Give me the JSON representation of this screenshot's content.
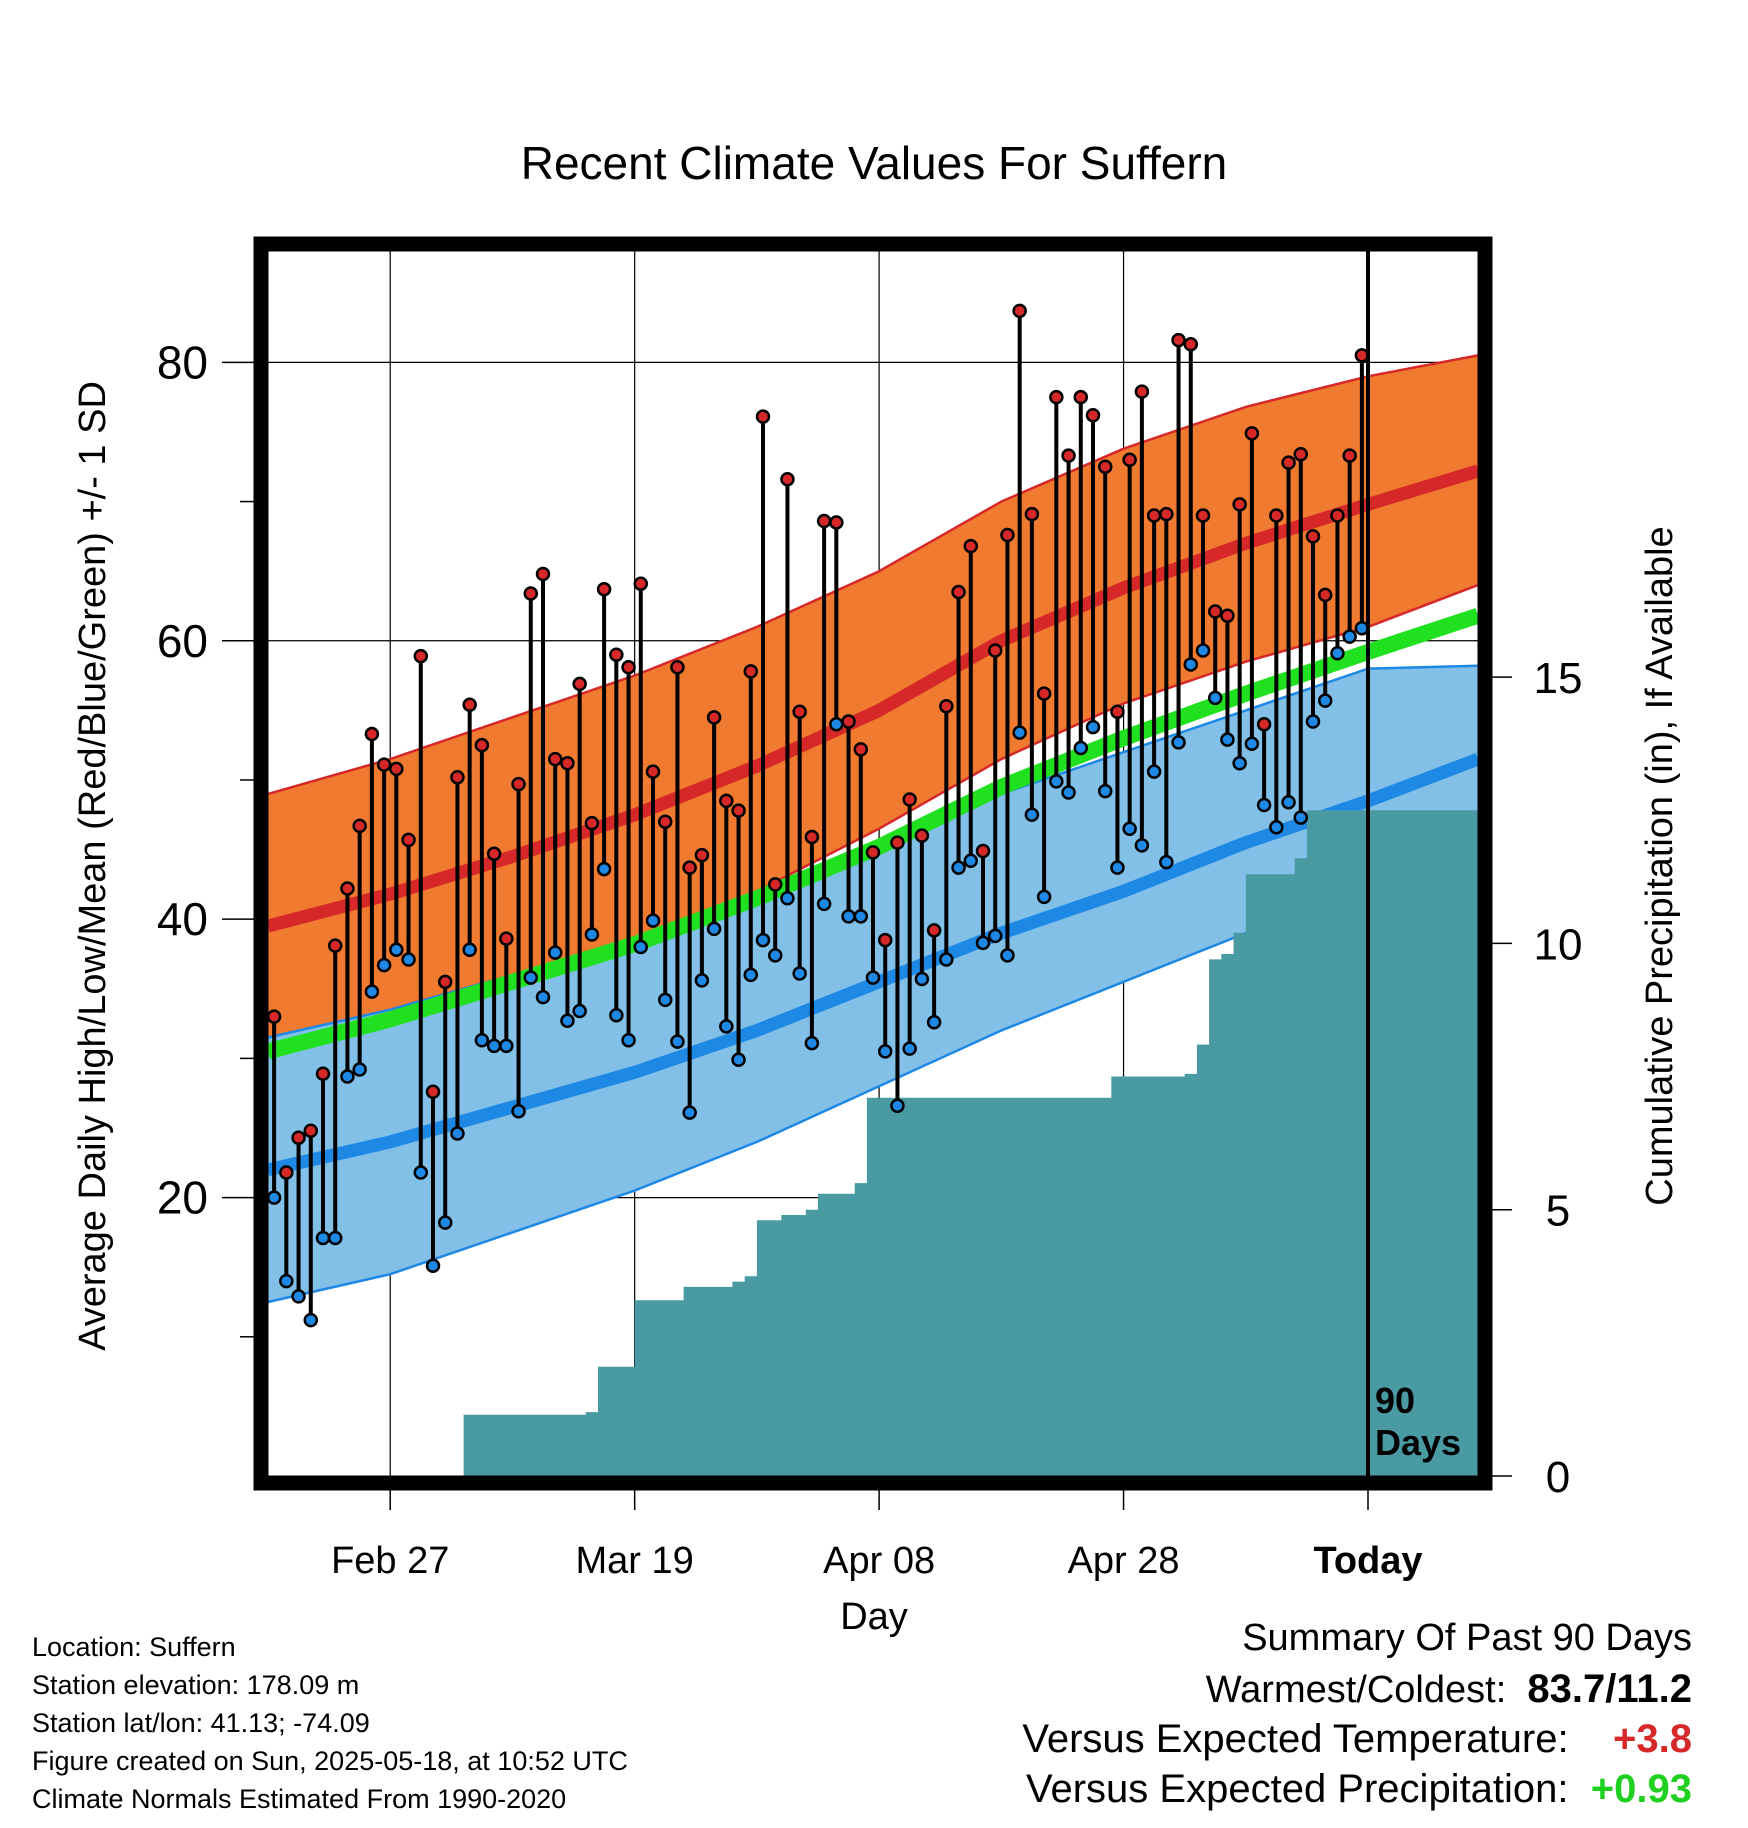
{
  "chart_data": {
    "type": "line",
    "title": "Recent Climate Values For Suffern",
    "xlabel": "Day",
    "ylabel": "Average Daily High/Low/Mean (Red/Blue/Green) +/- 1 SD",
    "y2label": "Cumulative Precipitation (in), If Available",
    "ylim": [
      0,
      88
    ],
    "y_ticks": [
      20,
      40,
      60,
      80
    ],
    "y2lim": [
      0,
      23
    ],
    "y2_ticks": [
      0,
      5,
      10,
      15
    ],
    "x_range": [
      "2025-02-17",
      "2025-05-27"
    ],
    "x_tick_labels": [
      {
        "date": "2025-02-27",
        "label": "Feb 27"
      },
      {
        "date": "2025-03-19",
        "label": "Mar 19"
      },
      {
        "date": "2025-04-08",
        "label": "Apr 08"
      },
      {
        "date": "2025-04-28",
        "label": "Apr 28"
      },
      {
        "date": "2025-05-18",
        "label": "Today"
      }
    ],
    "today": "2025-05-18",
    "today_label": "90\nDays",
    "grid": true,
    "colors": {
      "high": "#d62828",
      "high_band": "#f07a30",
      "low": "#1e88e5",
      "low_band": "#82c0e8",
      "mean": "#20e020",
      "precip": "#4a9aa3"
    },
    "normals": {
      "dates": [
        "2025-02-17",
        "2025-02-27",
        "2025-03-09",
        "2025-03-19",
        "2025-03-29",
        "2025-04-08",
        "2025-04-18",
        "2025-04-28",
        "2025-05-08",
        "2025-05-18",
        "2025-05-27"
      ],
      "high_mean": [
        39.5,
        41.8,
        44.5,
        47.5,
        51.0,
        55.0,
        60.0,
        63.8,
        67.0,
        69.8,
        72.2
      ],
      "high_upper": [
        49.0,
        51.5,
        54.5,
        57.5,
        61.0,
        65.0,
        70.0,
        73.8,
        76.8,
        79.0,
        80.5
      ],
      "high_lower": [
        31.0,
        33.5,
        36.0,
        38.5,
        42.0,
        46.5,
        51.5,
        55.5,
        58.5,
        61.0,
        64.0
      ],
      "low_mean": [
        22.0,
        24.0,
        26.5,
        29.0,
        32.0,
        35.5,
        39.0,
        42.0,
        45.5,
        48.5,
        51.5
      ],
      "low_upper": [
        31.5,
        33.5,
        36.0,
        38.5,
        42.0,
        45.5,
        49.0,
        52.0,
        55.0,
        58.0,
        58.2
      ],
      "low_lower": [
        12.5,
        14.5,
        17.5,
        20.5,
        24.0,
        28.0,
        32.0,
        35.5,
        39.0,
        42.0,
        45.0
      ],
      "mean": [
        30.5,
        32.8,
        35.5,
        38.2,
        41.5,
        45.2,
        49.5,
        53.0,
        56.2,
        59.2,
        61.8
      ]
    },
    "observed": {
      "start": "2025-02-17",
      "high": [
        33,
        21.8,
        24.3,
        24.8,
        28.9,
        38.1,
        42.2,
        46.7,
        53.3,
        51.1,
        50.8,
        45.7,
        58.9,
        27.6,
        35.5,
        50.2,
        55.4,
        52.5,
        44.7,
        38.6,
        49.7,
        63.4,
        64.8,
        51.5,
        51.2,
        56.9,
        46.9,
        63.7,
        59,
        58.1,
        64.1,
        50.6,
        47,
        58.1,
        43.7,
        44.6,
        54.5,
        48.5,
        47.8,
        57.8,
        76.1,
        42.5,
        71.6,
        54.9,
        45.9,
        68.6,
        68.5,
        54.2,
        52.2,
        44.8,
        38.5,
        45.5,
        48.6,
        46,
        39.2,
        55.3,
        63.5,
        66.8,
        44.9,
        59.3,
        67.6,
        83.7,
        69.1,
        56.2,
        77.5,
        73.3,
        77.5,
        76.2,
        72.5,
        54.9,
        73,
        77.9,
        69,
        69.1,
        81.6,
        81.3,
        69,
        62.1,
        61.8,
        69.8,
        74.9,
        54,
        69,
        72.8,
        73.4,
        67.5,
        63.3,
        69,
        73.3,
        80.5
      ],
      "low": [
        20,
        14,
        12.9,
        11.2,
        17.1,
        17.1,
        28.7,
        29.2,
        34.8,
        36.7,
        37.8,
        37.1,
        21.8,
        15.1,
        18.2,
        24.6,
        37.8,
        31.3,
        30.9,
        30.9,
        26.2,
        35.8,
        34.4,
        37.6,
        32.7,
        33.4,
        38.9,
        43.6,
        33.1,
        31.3,
        38,
        39.9,
        34.2,
        31.2,
        26.1,
        35.6,
        39.3,
        32.3,
        29.9,
        36,
        38.5,
        37.4,
        41.5,
        36.1,
        31.1,
        41.1,
        54,
        40.2,
        40.2,
        35.8,
        30.5,
        26.6,
        30.7,
        35.7,
        32.6,
        37.1,
        43.7,
        44.2,
        38.3,
        38.8,
        37.4,
        53.4,
        47.5,
        41.6,
        49.9,
        49.1,
        52.3,
        53.8,
        49.2,
        43.7,
        46.5,
        45.3,
        50.6,
        44.1,
        52.7,
        58.3,
        59.3,
        55.9,
        52.9,
        51.2,
        52.6,
        48.2,
        46.6,
        48.4,
        47.3,
        54.2,
        55.7,
        59.1,
        60.3,
        60.9
      ]
    },
    "precip_cumulative": [
      0,
      0,
      0,
      0,
      0,
      0,
      0,
      0,
      0,
      0,
      0,
      0,
      0,
      0,
      0,
      0,
      1.15,
      1.15,
      1.15,
      1.15,
      1.15,
      1.15,
      1.15,
      1.15,
      1.15,
      1.15,
      1.2,
      2.05,
      2.05,
      2.05,
      3.3,
      3.3,
      3.3,
      3.3,
      3.55,
      3.55,
      3.55,
      3.55,
      3.65,
      3.75,
      4.8,
      4.8,
      4.9,
      4.9,
      5.0,
      5.3,
      5.3,
      5.3,
      5.5,
      7.1,
      7.1,
      7.1,
      7.1,
      7.1,
      7.1,
      7.1,
      7.1,
      7.1,
      7.1,
      7.1,
      7.1,
      7.1,
      7.1,
      7.1,
      7.1,
      7.1,
      7.1,
      7.1,
      7.1,
      7.5,
      7.5,
      7.5,
      7.5,
      7.5,
      7.5,
      7.55,
      8.1,
      9.7,
      9.8,
      10.2,
      11.3,
      11.3,
      11.3,
      11.3,
      11.6,
      12.5,
      12.5,
      12.5,
      12.5,
      12.5,
      12.5
    ]
  },
  "info": {
    "location": "Location: Suffern",
    "elevation": "Station elevation: 178.09 m",
    "latlon": "Station lat/lon: 41.13; -74.09",
    "created": "Figure created on Sun, 2025-05-18, at 10:52 UTC",
    "normals": "Climate Normals Estimated From 1990-2020"
  },
  "summary": {
    "heading": "Summary Of Past 90 Days",
    "warm_cold_label": "Warmest/Coldest:",
    "warm_cold_value": "83.7/11.2",
    "temp_label": "Versus Expected Temperature:",
    "temp_value": "+3.8",
    "temp_color": "#d62828",
    "precip_label": "Versus Expected Precipitation:",
    "precip_value": "+0.93",
    "precip_color": "#20d020"
  }
}
